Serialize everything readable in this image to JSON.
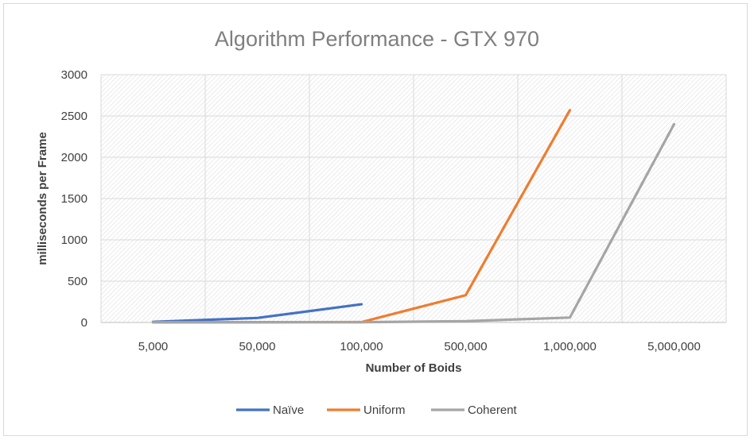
{
  "chart_data": {
    "type": "line",
    "title": "Algorithm Performance - GTX 970",
    "xlabel": "Number of Boids",
    "ylabel": "milliseconds per Frame",
    "categories": [
      "5,000",
      "50,000",
      "100,000",
      "500,000",
      "1,000,000",
      "5,000,000"
    ],
    "yticks": [
      "0",
      "500",
      "1000",
      "1500",
      "2000",
      "2500",
      "3000"
    ],
    "ylim": [
      0,
      3000
    ],
    "grid": true,
    "legend_position": "bottom",
    "series": [
      {
        "name": "Naïve",
        "color": "#4472c4",
        "values": [
          8,
          55,
          220,
          null,
          null,
          null
        ]
      },
      {
        "name": "Uniform",
        "color": "#ed7d31",
        "values": [
          2,
          4,
          5,
          330,
          2570,
          null
        ]
      },
      {
        "name": "Coherent",
        "color": "#a5a5a5",
        "values": [
          1,
          2,
          4,
          15,
          60,
          2400
        ]
      }
    ]
  }
}
